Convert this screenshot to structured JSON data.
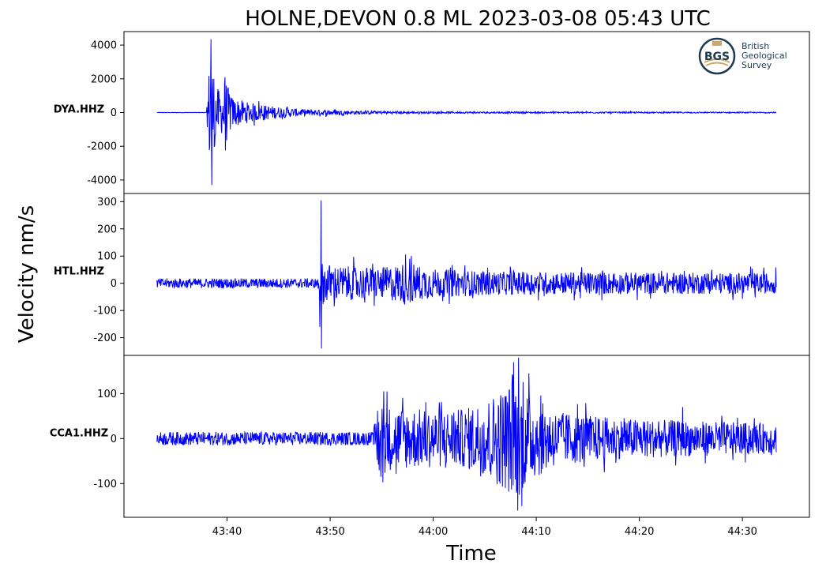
{
  "chart_data": {
    "type": "line",
    "title": "HOLNE,DEVON 0.8 ML   2023-03-08 05:43 UTC",
    "xlabel": "Time",
    "ylabel": "Velocity nm/s",
    "x_ticks": [
      "43:40",
      "43:50",
      "44:00",
      "44:10",
      "44:20",
      "44:30"
    ],
    "x_range": [
      "43:30",
      "44:36.5"
    ],
    "trace_span": [
      "43:33.2",
      "44:33.3"
    ],
    "line_color": "#0000ff",
    "grid": false,
    "legend": "none",
    "logo": {
      "text": [
        "British",
        "Geological",
        "Survey"
      ],
      "mark": "BGS"
    },
    "panels": [
      {
        "station": "DYA.HHZ",
        "ylim": [
          -4800,
          4800
        ],
        "yticks": [
          -4000,
          -2000,
          0,
          2000,
          4000
        ],
        "envelope": [
          {
            "t": 38.0,
            "amp": 0
          },
          {
            "t": 38.4,
            "amp": 4300
          },
          {
            "t": 38.8,
            "amp": 1800
          },
          {
            "t": 39.4,
            "amp": 1100
          },
          {
            "t": 39.8,
            "amp": 2000
          },
          {
            "t": 40.5,
            "amp": 900
          },
          {
            "t": 42.0,
            "amp": 600
          },
          {
            "t": 44.0,
            "amp": 400
          },
          {
            "t": 47.0,
            "amp": 200
          },
          {
            "t": 52.0,
            "amp": 100
          },
          {
            "t": 60.0,
            "amp": 40
          },
          {
            "t": 93.3,
            "amp": 15
          }
        ],
        "peaks": [
          {
            "t": 38.45,
            "value": 4350
          },
          {
            "t": 38.5,
            "value": -4300
          },
          {
            "t": 38.7,
            "value": 2000
          },
          {
            "t": 38.8,
            "value": -1950
          },
          {
            "t": 39.8,
            "value": 2100
          },
          {
            "t": 39.85,
            "value": -2250
          }
        ],
        "noise": 15
      },
      {
        "station": "HTL.HHZ",
        "ylim": [
          -265,
          330
        ],
        "yticks": [
          -200,
          -100,
          0,
          100,
          200,
          300
        ],
        "envelope": [
          {
            "t": 48.8,
            "amp": 0
          },
          {
            "t": 49.1,
            "amp": 60
          },
          {
            "t": 51.0,
            "amp": 45
          },
          {
            "t": 55.0,
            "amp": 40
          },
          {
            "t": 57.5,
            "amp": 60
          },
          {
            "t": 60.0,
            "amp": 35
          },
          {
            "t": 66.0,
            "amp": 25
          },
          {
            "t": 93.3,
            "amp": 20
          }
        ],
        "peaks": [
          {
            "t": 49.1,
            "value": 305
          },
          {
            "t": 49.15,
            "value": -240
          },
          {
            "t": 49.0,
            "value": -160
          },
          {
            "t": 57.7,
            "value": 90
          },
          {
            "t": 58.0,
            "value": -65
          }
        ],
        "noise": 18
      },
      {
        "station": "CCA1.HHZ",
        "ylim": [
          -175,
          185
        ],
        "yticks": [
          -100,
          0,
          100
        ],
        "envelope": [
          {
            "t": 54.2,
            "amp": 0
          },
          {
            "t": 54.6,
            "amp": 70
          },
          {
            "t": 56.0,
            "amp": 55
          },
          {
            "t": 60.0,
            "amp": 50
          },
          {
            "t": 63.0,
            "amp": 50
          },
          {
            "t": 66.0,
            "amp": 85
          },
          {
            "t": 68.0,
            "amp": 120
          },
          {
            "t": 69.5,
            "amp": 80
          },
          {
            "t": 72.0,
            "amp": 45
          },
          {
            "t": 78.0,
            "amp": 30
          },
          {
            "t": 93.3,
            "amp": 18
          }
        ],
        "peaks": [
          {
            "t": 55.2,
            "value": 105
          },
          {
            "t": 54.9,
            "value": -85
          },
          {
            "t": 68.3,
            "value": 180
          },
          {
            "t": 68.2,
            "value": -160
          },
          {
            "t": 67.8,
            "value": 170
          },
          {
            "t": 68.6,
            "value": -150
          },
          {
            "t": 84.2,
            "value": 70
          }
        ],
        "noise": 15
      }
    ]
  }
}
